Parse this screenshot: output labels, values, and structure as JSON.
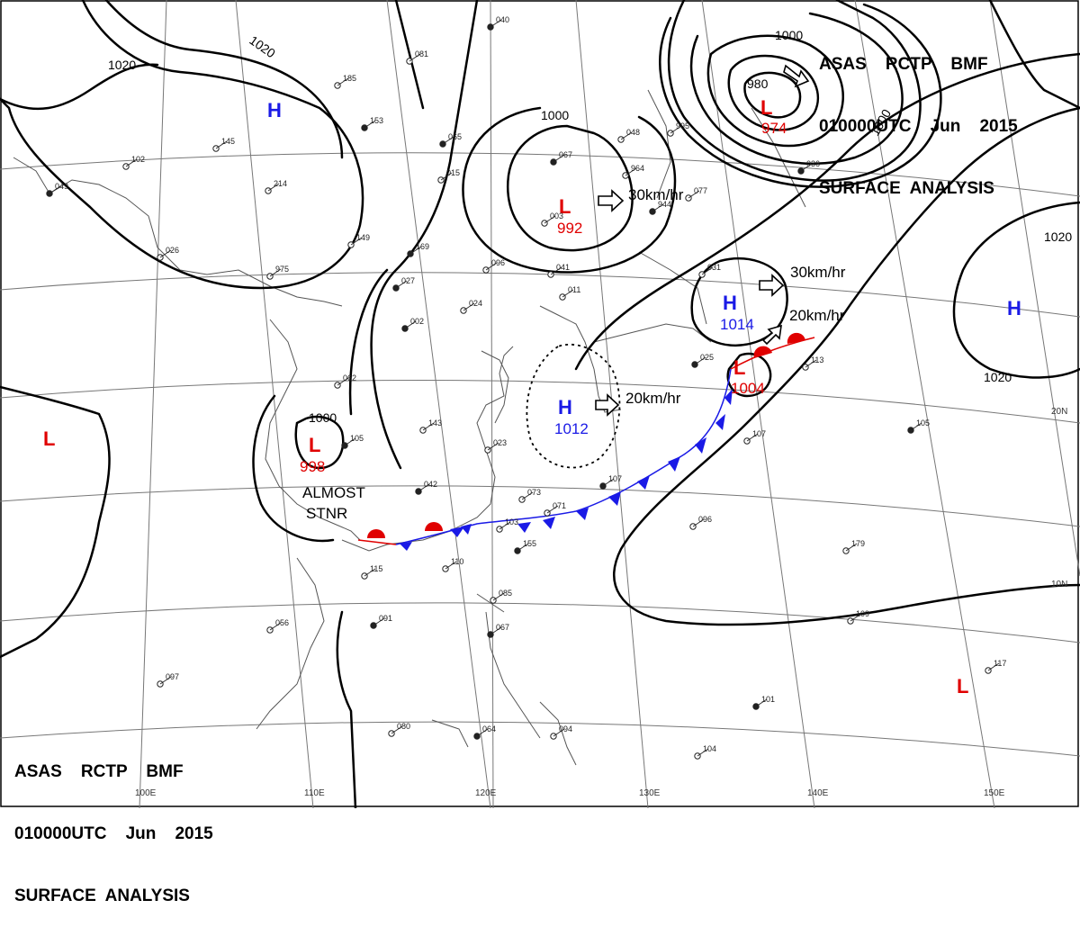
{
  "header_top": {
    "line1": "ASAS    RCTP    BMF",
    "line2": "010000UTC    Jun    2015",
    "line3": "SURFACE  ANALYSIS"
  },
  "header_bottom": {
    "line1": "ASAS    RCTP    BMF",
    "line2": "010000UTC    Jun    2015",
    "line3": "SURFACE  ANALYSIS"
  },
  "colors": {
    "high": "#1a1ae6",
    "low": "#e00000",
    "isobar": "#000000",
    "coast": "#555555",
    "grid": "#777777"
  },
  "pressure_centers": [
    {
      "type": "H",
      "value": ""
    },
    {
      "type": "L",
      "value": ""
    },
    {
      "type": "L",
      "value": "992"
    },
    {
      "type": "L",
      "value": "974"
    },
    {
      "type": "H",
      "value": "1014"
    },
    {
      "type": "H",
      "value": "1012"
    },
    {
      "type": "L",
      "value": "1004"
    },
    {
      "type": "L",
      "value": "998"
    },
    {
      "type": "H",
      "value": ""
    },
    {
      "type": "L",
      "value": ""
    }
  ],
  "isobar_labels": [
    "1020",
    "1020",
    "1000",
    "1000",
    "980",
    "1000",
    "1020",
    "1020",
    "1000"
  ],
  "motion_labels": [
    "30km/hr",
    "30km/hr",
    "20km/hr",
    "20km/hr",
    "ALMOST",
    "STNR"
  ],
  "grid_labels": {
    "lat": [
      "20N",
      "10N"
    ],
    "lon": [
      "100E",
      "110E",
      "120E",
      "130E",
      "140E",
      "150E"
    ]
  },
  "station_numbers": [
    "040",
    "081",
    "185",
    "153",
    "145",
    "102",
    "049",
    "214",
    "149",
    "065",
    "015",
    "048",
    "067",
    "003",
    "964",
    "944",
    "077",
    "995",
    "036",
    "026",
    "975",
    "169",
    "096",
    "041",
    "027",
    "024",
    "011",
    "002",
    "062",
    "031",
    "025",
    "113",
    "107",
    "105",
    "143",
    "023",
    "042",
    "073",
    "071",
    "107",
    "096",
    "103",
    "155",
    "110",
    "115",
    "091",
    "056",
    "085",
    "067",
    "097",
    "080",
    "064",
    "094",
    "104",
    "101",
    "109",
    "117",
    "105",
    "179"
  ]
}
